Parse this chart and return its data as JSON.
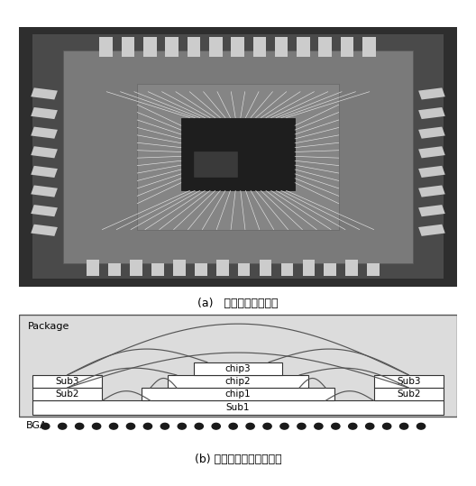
{
  "fig_width": 5.28,
  "fig_height": 5.39,
  "dpi": 100,
  "caption_a": "(a)   系统级封装实物图",
  "caption_b": "(b) 系统级封装界面原理图",
  "package_label": "Package",
  "bga_label": "BGA",
  "chip_labels": [
    "chip1",
    "chip2",
    "chip3"
  ],
  "sub_labels": [
    "Sub1",
    "Sub2",
    "Sub3"
  ],
  "box_facecolor": "#ffffff",
  "box_edgecolor": "#333333",
  "diagram_bg": "#e0e0e0",
  "arc_color": "#555555",
  "font_size_caption": 9,
  "font_size_label": 7.5,
  "font_size_package": 8,
  "font_size_bga": 8
}
